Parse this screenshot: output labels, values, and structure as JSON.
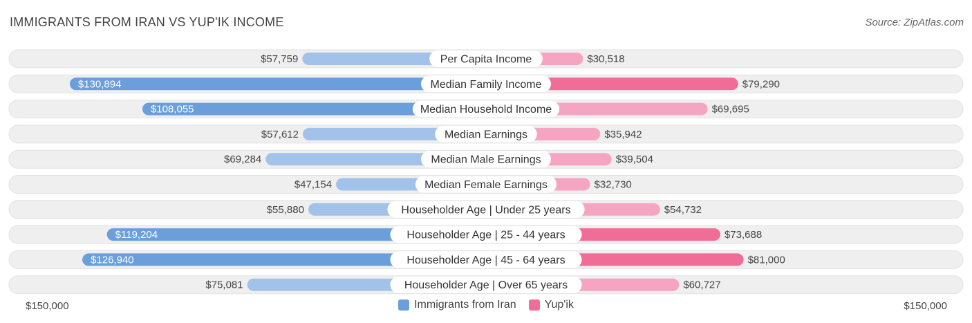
{
  "header": {
    "title": "IMMIGRANTS FROM IRAN VS YUP'IK INCOME",
    "source": "Source: ZipAtlas.com"
  },
  "colors": {
    "left_strong": "#6a9fdc",
    "left_light": "#a3c2e9",
    "right_strong": "#f06d98",
    "right_light": "#f5a5c1",
    "row_bg": "#efefef"
  },
  "axis": {
    "left_label": "$150,000",
    "right_label": "$150,000"
  },
  "legend": {
    "left": "Immigrants from Iran",
    "right": "Yup'ik"
  },
  "chart_data": {
    "type": "bar",
    "orientation": "horizontal-diverging",
    "title": "IMMIGRANTS FROM IRAN VS YUP'IK INCOME",
    "xlim": [
      0,
      150000
    ],
    "categories": [
      "Per Capita Income",
      "Median Family Income",
      "Median Household Income",
      "Median Earnings",
      "Median Male Earnings",
      "Median Female Earnings",
      "Householder Age | Under 25 years",
      "Householder Age | 25 - 44 years",
      "Householder Age | 45 - 64 years",
      "Householder Age | Over 65 years"
    ],
    "series": [
      {
        "name": "Immigrants from Iran",
        "values": [
          57759,
          130894,
          108055,
          57612,
          69284,
          47154,
          55880,
          119204,
          126940,
          75081
        ],
        "labels": [
          "$57,759",
          "$130,894",
          "$108,055",
          "$57,612",
          "$69,284",
          "$47,154",
          "$55,880",
          "$119,204",
          "$126,940",
          "$75,081"
        ]
      },
      {
        "name": "Yup'ik",
        "values": [
          30518,
          79290,
          69695,
          35942,
          39504,
          32730,
          54732,
          73688,
          81000,
          60727
        ],
        "labels": [
          "$30,518",
          "$79,290",
          "$69,695",
          "$35,942",
          "$39,504",
          "$32,730",
          "$54,732",
          "$73,688",
          "$81,000",
          "$60,727"
        ]
      }
    ]
  }
}
